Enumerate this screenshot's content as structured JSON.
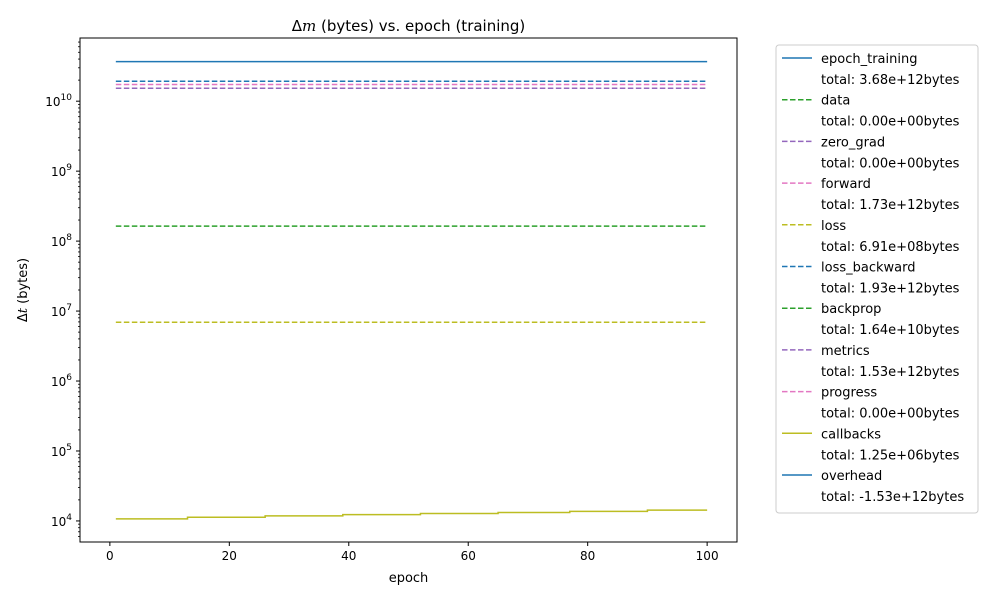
{
  "chart_data": {
    "type": "line",
    "title": "Δm (bytes) vs. epoch (training)",
    "title_parts": {
      "delta": "Δ",
      "symbol": "m",
      "rest": " (bytes) vs. epoch (training)"
    },
    "xlabel": "epoch",
    "ylabel": "Δt (bytes)",
    "ylabel_parts": {
      "delta": "Δ",
      "symbol": "t",
      "rest": " (bytes)"
    },
    "yscale": "log",
    "xlim": [
      -5,
      105
    ],
    "ylim": [
      5000,
      80000000000
    ],
    "x_ticks": [
      0,
      20,
      40,
      60,
      80,
      100
    ],
    "x_tick_labels": [
      "0",
      "20",
      "40",
      "60",
      "80",
      "100"
    ],
    "y_ticks": [
      4,
      5,
      6,
      7,
      8,
      9,
      10
    ],
    "y_tick_labels": [
      {
        "base": "10",
        "exp": "4"
      },
      {
        "base": "10",
        "exp": "5"
      },
      {
        "base": "10",
        "exp": "6"
      },
      {
        "base": "10",
        "exp": "7"
      },
      {
        "base": "10",
        "exp": "8"
      },
      {
        "base": "10",
        "exp": "9"
      },
      {
        "base": "10",
        "exp": "10"
      }
    ],
    "x_range": [
      1,
      100
    ],
    "legend_position": "outside right",
    "series": [
      {
        "name": "epoch_training",
        "total": "total: 3.68e+12bytes",
        "color": "#1f77b4",
        "dash": "solid",
        "value": 36800000000
      },
      {
        "name": "data",
        "total": "total: 0.00e+00bytes",
        "color": "#2ca02c",
        "dash": "dashed",
        "value": null
      },
      {
        "name": "zero_grad",
        "total": "total: 0.00e+00bytes",
        "color": "#9467bd",
        "dash": "dashed",
        "value": null
      },
      {
        "name": "forward",
        "total": "total: 1.73e+12bytes",
        "color": "#e377c2",
        "dash": "dashed",
        "value": 17300000000
      },
      {
        "name": "loss",
        "total": "total: 6.91e+08bytes",
        "color": "#bcbd22",
        "dash": "dashed",
        "value": 6910000
      },
      {
        "name": "loss_backward",
        "total": "total: 1.93e+12bytes",
        "color": "#1f77b4",
        "dash": "dashed",
        "value": 19300000000
      },
      {
        "name": "backprop",
        "total": "total: 1.64e+10bytes",
        "color": "#2ca02c",
        "dash": "dashed",
        "value": 164000000
      },
      {
        "name": "metrics",
        "total": "total: 1.53e+12bytes",
        "color": "#9467bd",
        "dash": "dashed",
        "value": 15300000000
      },
      {
        "name": "progress",
        "total": "total: 0.00e+00bytes",
        "color": "#e377c2",
        "dash": "dashed",
        "value": null
      },
      {
        "name": "callbacks",
        "total": "total: 1.25e+06bytes",
        "color": "#bcbd22",
        "dash": "solid",
        "value": null,
        "steps": [
          [
            1,
            10700
          ],
          [
            13,
            11300
          ],
          [
            26,
            11800
          ],
          [
            39,
            12300
          ],
          [
            52,
            12800
          ],
          [
            65,
            13200
          ],
          [
            77,
            13700
          ],
          [
            90,
            14300
          ],
          [
            100,
            14300
          ]
        ]
      },
      {
        "name": "overhead",
        "total": "total: -1.53e+12bytes",
        "color": "#1f77b4",
        "dash": "solid",
        "value": null
      }
    ]
  }
}
